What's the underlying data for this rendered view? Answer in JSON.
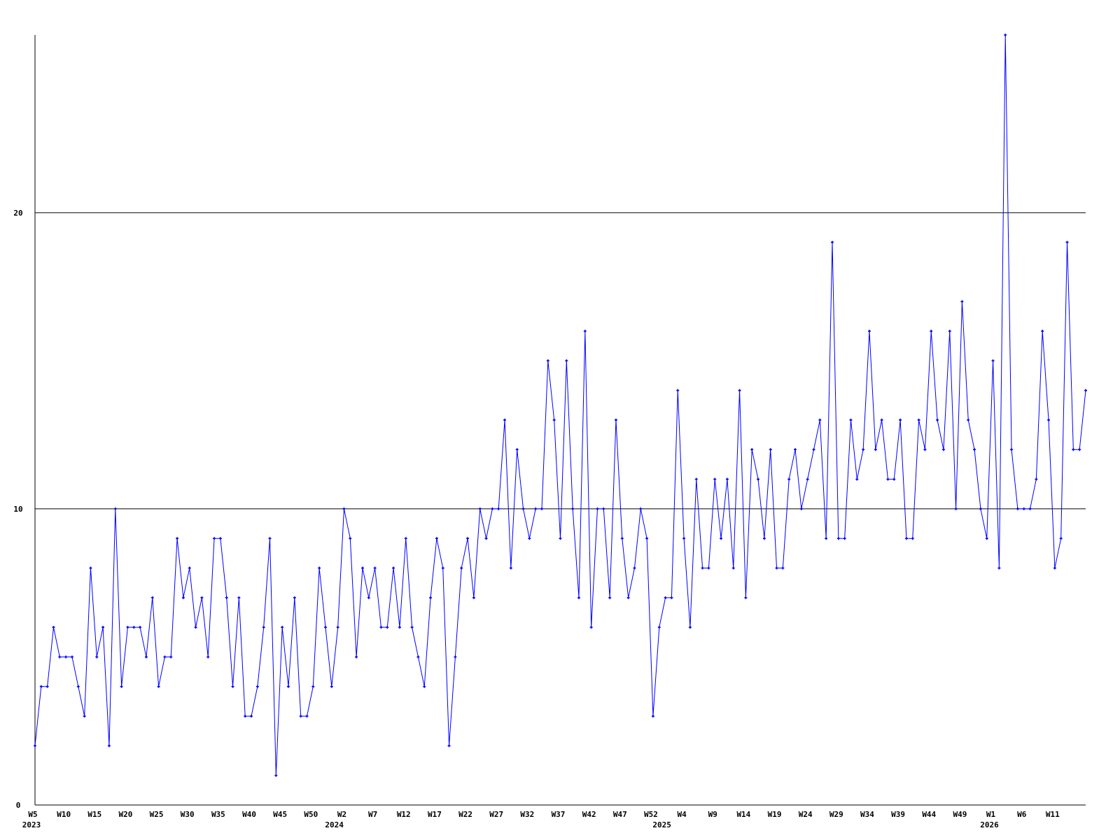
{
  "chart_data": {
    "type": "line",
    "title": "",
    "xlabel": "",
    "ylabel": "",
    "ylim": [
      0,
      26
    ],
    "yticks": [
      0,
      10,
      20
    ],
    "ytick_labels": [
      "0",
      "10",
      "20"
    ],
    "grid": "horizontal lines at y ticks",
    "legend": "none",
    "line_color": "#0000ff",
    "marker": "small cross",
    "x": [
      "2023-W05",
      "2023-W06",
      "2023-W07",
      "2023-W08",
      "2023-W09",
      "2023-W10",
      "2023-W11",
      "2023-W12",
      "2023-W13",
      "2023-W14",
      "2023-W15",
      "2023-W16",
      "2023-W17",
      "2023-W18",
      "2023-W19",
      "2023-W20",
      "2023-W21",
      "2023-W22",
      "2023-W23",
      "2023-W24",
      "2023-W25",
      "2023-W26",
      "2023-W27",
      "2023-W28",
      "2023-W29",
      "2023-W30",
      "2023-W31",
      "2023-W32",
      "2023-W33",
      "2023-W34",
      "2023-W35",
      "2023-W36",
      "2023-W37",
      "2023-W38",
      "2023-W39",
      "2023-W40",
      "2023-W41",
      "2023-W42",
      "2023-W43",
      "2023-W44",
      "2023-W45",
      "2023-W46",
      "2023-W47",
      "2023-W48",
      "2023-W49",
      "2023-W50",
      "2023-W51",
      "2023-W52",
      "2023-W53",
      "2024-W01",
      "2024-W02",
      "2024-W03",
      "2024-W04",
      "2024-W05",
      "2024-W06",
      "2024-W07",
      "2024-W08",
      "2024-W09",
      "2024-W10",
      "2024-W11",
      "2024-W12",
      "2024-W13",
      "2024-W14",
      "2024-W15",
      "2024-W16",
      "2024-W17",
      "2024-W18",
      "2024-W19",
      "2024-W20",
      "2024-W21",
      "2024-W22",
      "2024-W23",
      "2024-W24",
      "2024-W25",
      "2024-W26",
      "2024-W27",
      "2024-W28",
      "2024-W29",
      "2024-W30",
      "2024-W31",
      "2024-W32",
      "2024-W33",
      "2024-W34",
      "2024-W35",
      "2024-W36",
      "2024-W37",
      "2024-W38",
      "2024-W39",
      "2024-W40",
      "2024-W41",
      "2024-W42",
      "2024-W43",
      "2024-W44",
      "2024-W45",
      "2024-W46",
      "2024-W47",
      "2024-W48",
      "2024-W49",
      "2024-W50",
      "2024-W51",
      "2024-W52",
      "2024-W53",
      "2025-W01",
      "2025-W02",
      "2025-W03",
      "2025-W04",
      "2025-W05",
      "2025-W06",
      "2025-W07",
      "2025-W08",
      "2025-W09",
      "2025-W10",
      "2025-W11",
      "2025-W12",
      "2025-W13",
      "2025-W14",
      "2025-W15",
      "2025-W16",
      "2025-W17",
      "2025-W18",
      "2025-W19",
      "2025-W20",
      "2025-W21",
      "2025-W22",
      "2025-W23",
      "2025-W24",
      "2025-W25",
      "2025-W26",
      "2025-W27",
      "2025-W28",
      "2025-W29",
      "2025-W30",
      "2025-W31",
      "2025-W32",
      "2025-W33",
      "2025-W34",
      "2025-W35",
      "2025-W36",
      "2025-W37",
      "2025-W38",
      "2025-W39",
      "2025-W40",
      "2025-W41",
      "2025-W42",
      "2025-W43",
      "2025-W44",
      "2025-W45",
      "2025-W46",
      "2025-W47",
      "2025-W48",
      "2025-W49",
      "2025-W50",
      "2025-W51",
      "2025-W52",
      "2025-W53",
      "2026-W01",
      "2026-W02",
      "2026-W03",
      "2026-W04",
      "2026-W05",
      "2026-W06",
      "2026-W07",
      "2026-W08",
      "2026-W09",
      "2026-W10",
      "2026-W11",
      "2026-W12",
      "2026-W13",
      "2026-W14",
      "2026-W15",
      "2026-W16"
    ],
    "values": [
      2,
      4,
      4,
      6,
      5,
      5,
      5,
      4,
      3,
      8,
      5,
      6,
      2,
      10,
      4,
      6,
      6,
      6,
      5,
      7,
      4,
      5,
      5,
      9,
      7,
      8,
      6,
      7,
      5,
      9,
      9,
      7,
      4,
      7,
      3,
      3,
      4,
      6,
      9,
      1,
      6,
      4,
      7,
      3,
      3,
      4,
      8,
      6,
      4,
      6,
      10,
      9,
      5,
      8,
      7,
      8,
      6,
      6,
      8,
      6,
      9,
      6,
      5,
      4,
      7,
      9,
      8,
      2,
      5,
      8,
      9,
      7,
      10,
      9,
      10,
      10,
      13,
      8,
      12,
      10,
      9,
      10,
      10,
      15,
      13,
      9,
      15,
      10,
      7,
      16,
      6,
      10,
      10,
      7,
      13,
      9,
      7,
      8,
      10,
      9,
      3,
      6,
      7,
      7,
      14,
      9,
      6,
      11,
      8,
      8,
      11,
      9,
      11,
      8,
      14,
      7,
      12,
      11,
      9,
      12,
      8,
      8,
      11,
      12,
      10,
      11,
      12,
      13,
      9,
      19,
      9,
      9,
      13,
      11,
      12,
      16,
      12,
      13,
      11,
      11,
      13,
      9,
      9,
      13,
      12,
      16,
      13,
      12,
      16,
      10,
      17,
      13,
      12,
      10,
      9,
      15,
      8,
      26,
      12,
      10,
      10,
      10,
      11,
      16,
      13,
      8,
      9,
      19,
      12,
      12,
      14
    ],
    "xtick_every": 5,
    "xtick_labels": [
      "W5",
      "W10",
      "W15",
      "W20",
      "W25",
      "W30",
      "W35",
      "W40",
      "W45",
      "W50",
      "W2",
      "W7",
      "W12",
      "W17",
      "W22",
      "W27",
      "W32",
      "W37",
      "W42",
      "W47",
      "W52",
      "W4",
      "W9",
      "W14",
      "W19",
      "W24",
      "W29",
      "W34",
      "W39",
      "W44",
      "W49",
      "W1",
      "W6",
      "W11"
    ],
    "year_labels": [
      {
        "at": "2023-W05",
        "label": "2023"
      },
      {
        "at": "2024-W01",
        "label": "2024"
      },
      {
        "at": "2025-W01",
        "label": "2025"
      },
      {
        "at": "2026-W01",
        "label": "2026"
      }
    ]
  }
}
